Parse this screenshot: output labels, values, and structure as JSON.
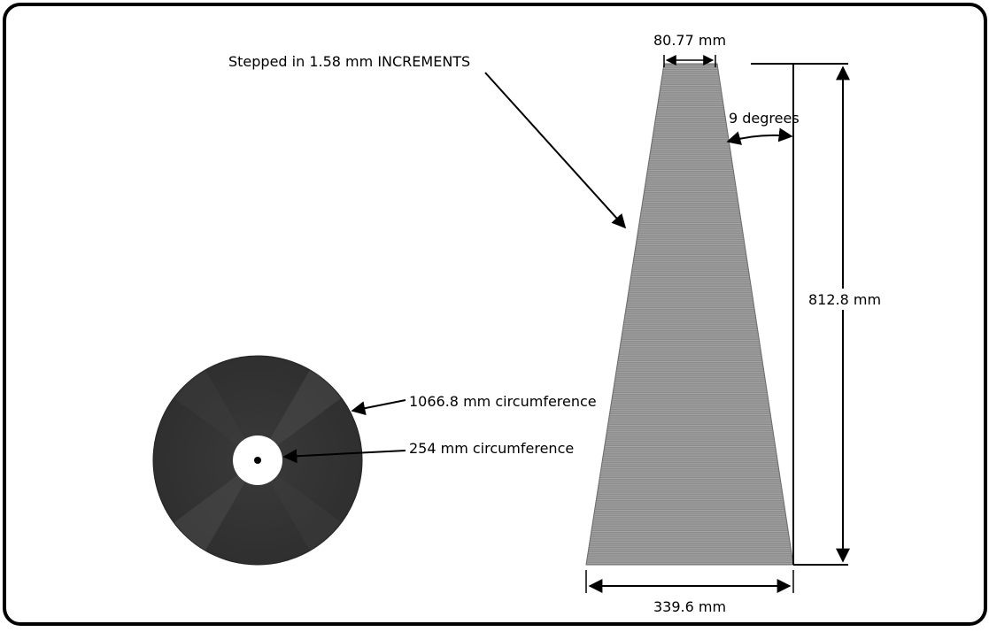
{
  "labels": {
    "increments": "Stepped in 1.58 mm INCREMENTS",
    "top_width": "80.77 mm",
    "angle": "9 degrees",
    "height": "812.8 mm",
    "bottom_width": "339.6 mm",
    "outer_circumference": "1066.8 mm circumference",
    "inner_circumference": "254 mm circumference"
  },
  "colors": {
    "frame": "#000000",
    "cone_fill": "#8a8a8a",
    "cone_stripe": "#a6a6a6",
    "disc_fill": "#333333",
    "disc_highlight": "#4a4a4a",
    "hub_fill": "#ffffff",
    "ink": "#000000"
  }
}
